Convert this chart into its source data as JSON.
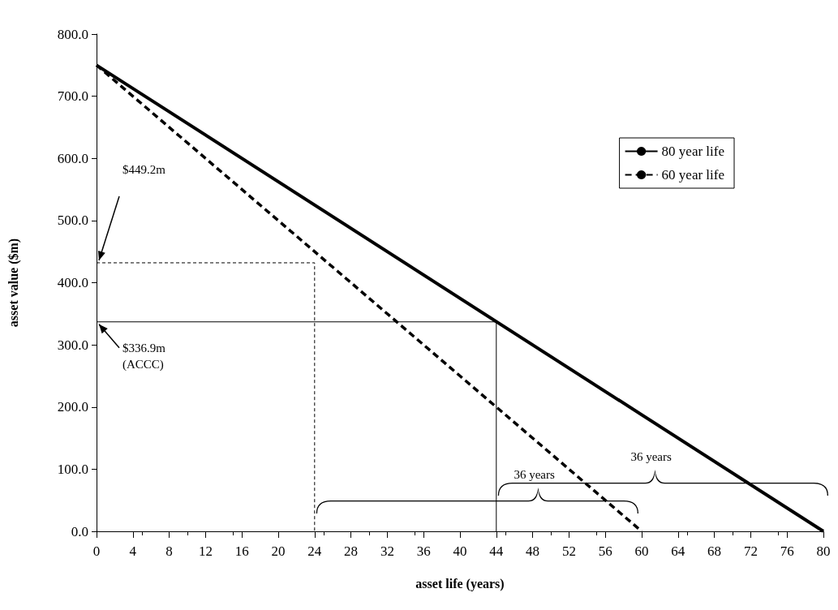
{
  "chart_data": {
    "type": "line",
    "xlabel": "asset life (years)",
    "ylabel": "asset value ($m)",
    "xlim": [
      0,
      80
    ],
    "xticks": [
      0,
      4,
      8,
      12,
      16,
      20,
      24,
      28,
      32,
      36,
      40,
      44,
      48,
      52,
      56,
      60,
      64,
      68,
      72,
      76,
      80
    ],
    "ylim": [
      0,
      800
    ],
    "yticks": [
      {
        "value": 0,
        "label": "0.0"
      },
      {
        "value": 100,
        "label": "100.0"
      },
      {
        "value": 200,
        "label": "200.0"
      },
      {
        "value": 300,
        "label": "300.0"
      },
      {
        "value": 400,
        "label": "400.0"
      },
      {
        "value": 500,
        "label": "500.0"
      },
      {
        "value": 600,
        "label": "600.0"
      },
      {
        "value": 700,
        "label": "700.0"
      },
      {
        "value": 800,
        "label": "800.0"
      }
    ],
    "grid": false,
    "legend": "top right",
    "marker": "none",
    "series": [
      {
        "name": "80 year life",
        "color": "#000000",
        "line_style": "solid",
        "x": [
          0,
          80
        ],
        "values": [
          750,
          0
        ]
      },
      {
        "name": "60 year life",
        "color": "#000000",
        "line_style": "dashed",
        "x": [
          0,
          60
        ],
        "values": [
          750,
          0
        ]
      },
      {
        "color": "#000000",
        "line_style": "dashed",
        "x": [
          0,
          24,
          24
        ],
        "values": [
          432,
          432,
          0
        ]
      },
      {
        "color": "#000000",
        "line_style": "solid",
        "x": [
          0,
          44,
          44
        ],
        "values": [
          337,
          337,
          0
        ]
      }
    ],
    "annotations": [
      "$449.2m",
      "$336.9m\n(ACCC)",
      "36 years",
      "36 years"
    ]
  }
}
